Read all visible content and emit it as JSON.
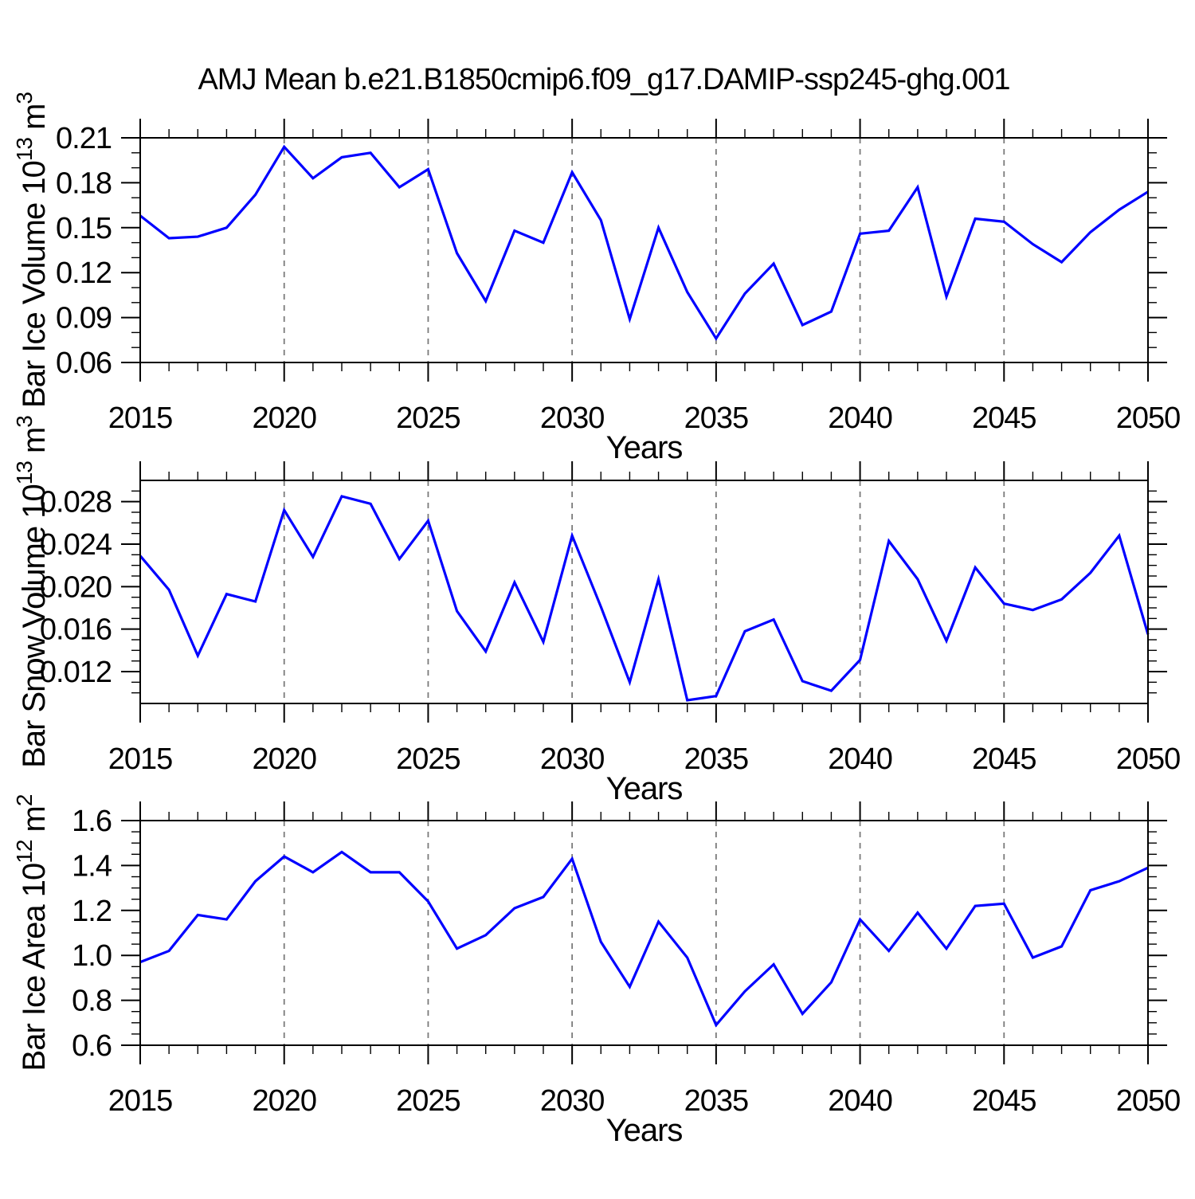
{
  "title": "AMJ Mean b.e21.B1850cmip6.f09_g17.DAMIP-ssp245-ghg.001",
  "colors": {
    "line": "#0000ff",
    "grid": "#7a7a7a",
    "axis": "#000000",
    "text": "#000000",
    "background": "#ffffff"
  },
  "x_axis": {
    "title": "Years",
    "min": 2015,
    "max": 2050,
    "major_tick_step": 5,
    "minor_tick_step": 1,
    "major_ticks": [
      2015,
      2020,
      2025,
      2030,
      2035,
      2040,
      2045,
      2050
    ],
    "major_tick_labels": [
      "2015",
      "2020",
      "2025",
      "2030",
      "2035",
      "2040",
      "2045",
      "2050"
    ],
    "gridline_years": [
      2020,
      2025,
      2030,
      2035,
      2040,
      2045
    ]
  },
  "chart_data": {
    "type": "line",
    "title": "AMJ Mean b.e21.B1850cmip6.f09_g17.DAMIP-ssp245-ghg.001",
    "xlabel": "Years",
    "legend": "none",
    "x": [
      2015,
      2016,
      2017,
      2018,
      2019,
      2020,
      2021,
      2022,
      2023,
      2024,
      2025,
      2026,
      2027,
      2028,
      2029,
      2030,
      2031,
      2032,
      2033,
      2034,
      2035,
      2036,
      2037,
      2038,
      2039,
      2040,
      2041,
      2042,
      2043,
      2044,
      2045,
      2046,
      2047,
      2048,
      2049,
      2050
    ],
    "panels": [
      {
        "id": "bar-ice-volume",
        "ylabel_text": "Bar Ice Volume 10^13 m^3",
        "ylabel_parts": [
          {
            "t": "Bar Ice Volume 10"
          },
          {
            "sup": "13"
          },
          {
            "t": " m"
          },
          {
            "sup": "3"
          }
        ],
        "ylim": [
          0.06,
          0.21
        ],
        "ytick_values": [
          0.21,
          0.18,
          0.15,
          0.12,
          0.09,
          0.06
        ],
        "ytick_labels": [
          "0.21",
          "0.18",
          "0.15",
          "0.12",
          "0.09",
          "0.06"
        ],
        "y_minor_step": 0.01,
        "values": [
          0.158,
          0.143,
          0.144,
          0.15,
          0.172,
          0.204,
          0.183,
          0.197,
          0.2,
          0.177,
          0.189,
          0.133,
          0.101,
          0.148,
          0.14,
          0.187,
          0.155,
          0.089,
          0.15,
          0.107,
          0.076,
          0.106,
          0.126,
          0.085,
          0.094,
          0.146,
          0.148,
          0.177,
          0.104,
          0.156,
          0.154,
          0.139,
          0.127,
          0.147,
          0.162,
          0.174
        ]
      },
      {
        "id": "bar-snow-volume",
        "ylabel_text": "Bar Snow Volume 10^13 m^3",
        "ylabel_parts": [
          {
            "t": "Bar Snow Volume 10"
          },
          {
            "sup": "13"
          },
          {
            "t": " m"
          },
          {
            "sup": "3"
          }
        ],
        "ylim": [
          0.009,
          0.03
        ],
        "ytick_values": [
          0.028,
          0.024,
          0.02,
          0.016,
          0.012
        ],
        "ytick_labels": [
          "0.028",
          "0.024",
          "0.020",
          "0.016",
          "0.012"
        ],
        "y_minor_step": 0.001,
        "values": [
          0.0229,
          0.0197,
          0.0135,
          0.0193,
          0.0186,
          0.0272,
          0.0228,
          0.0285,
          0.0278,
          0.0226,
          0.0262,
          0.0177,
          0.0139,
          0.0204,
          0.0148,
          0.0248,
          0.0181,
          0.011,
          0.0207,
          0.0093,
          0.0097,
          0.0158,
          0.0169,
          0.0111,
          0.0102,
          0.0131,
          0.0243,
          0.0207,
          0.0149,
          0.0218,
          0.0184,
          0.0178,
          0.0188,
          0.0213,
          0.0248,
          0.0155
        ]
      },
      {
        "id": "bar-ice-area",
        "ylabel_text": "Bar Ice Area 10^12 m^2",
        "ylabel_parts": [
          {
            "t": "Bar Ice Area 10"
          },
          {
            "sup": "12"
          },
          {
            "t": " m"
          },
          {
            "sup": "2"
          }
        ],
        "ylim": [
          0.6,
          1.6
        ],
        "ytick_values": [
          1.6,
          1.4,
          1.2,
          1.0,
          0.8,
          0.6
        ],
        "ytick_labels": [
          "1.6",
          "1.4",
          "1.2",
          "1.0",
          "0.8",
          "0.6"
        ],
        "y_minor_step": 0.05,
        "values": [
          0.97,
          1.02,
          1.18,
          1.16,
          1.33,
          1.44,
          1.37,
          1.46,
          1.37,
          1.37,
          1.24,
          1.03,
          1.09,
          1.21,
          1.26,
          1.43,
          1.06,
          0.86,
          1.15,
          0.99,
          0.69,
          0.84,
          0.96,
          0.74,
          0.88,
          1.16,
          1.02,
          1.19,
          1.03,
          1.22,
          1.23,
          0.99,
          1.04,
          1.29,
          1.33,
          1.39
        ]
      }
    ]
  }
}
